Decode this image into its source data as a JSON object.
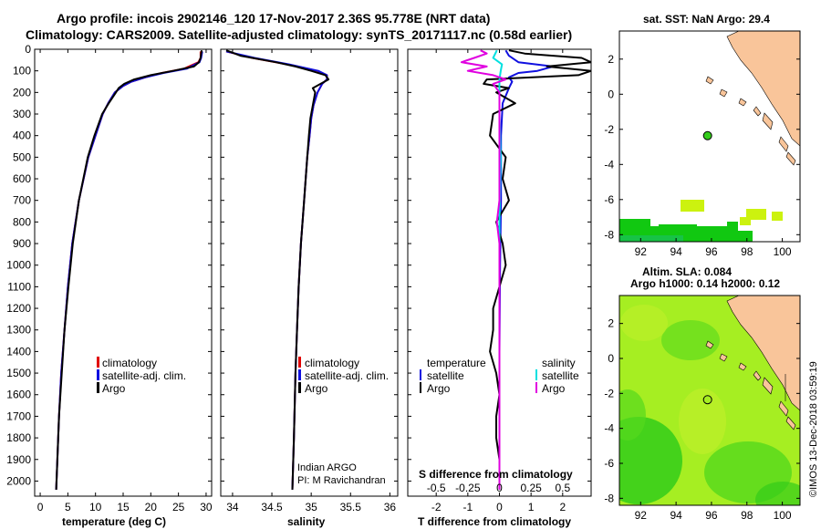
{
  "title_line1": "Argo profile: incois 2902146_120 17-Nov-2017 2.36S 95.778E (NRT data)",
  "title_line2": "Climatology: CARS2009. Satellite-adjusted climatology: synTS_20171117.nc (0.58d earlier)",
  "colors": {
    "clim": "#e00000",
    "sat": "#1010e0",
    "argo": "#000000",
    "sal_sat": "#00e0e0",
    "sal_argo": "#e000e0",
    "land": "#f9c59a",
    "sst_green": "#11c811",
    "sst_yellow": "#ccf20f",
    "sla_bg": "#a6ee22",
    "sla_dark": "#33cc1a"
  },
  "depth_axis": {
    "ticks": [
      "0",
      "100",
      "200",
      "300",
      "400",
      "500",
      "600",
      "700",
      "800",
      "900",
      "1000",
      "1100",
      "1200",
      "1300",
      "1400",
      "1500",
      "1600",
      "1700",
      "1800",
      "1900",
      "2000"
    ]
  },
  "chart_data": [
    {
      "id": "temperature",
      "type": "line",
      "xlabel": "temperature (deg C)",
      "xlim": [
        -1,
        31
      ],
      "ylim": [
        2070,
        0
      ],
      "xticks": [
        "0",
        "5",
        "10",
        "15",
        "20",
        "25",
        "30"
      ],
      "legend": [
        "climatology",
        "satellite-adj. clim.",
        "Argo"
      ],
      "series": [
        {
          "name": "climatology",
          "depth": [
            10,
            40,
            60,
            90,
            110,
            130,
            150,
            170,
            200,
            250,
            300,
            400,
            500,
            700,
            900,
            1100,
            1300,
            1500,
            1700,
            2040
          ],
          "values": [
            29,
            29,
            28.6,
            26,
            22,
            19,
            16.5,
            15,
            13.5,
            12.3,
            11.3,
            10,
            8.7,
            7,
            5.8,
            5,
            4.4,
            3.8,
            3.4,
            2.9
          ]
        },
        {
          "name": "satellite-adj. clim.",
          "depth": [
            10,
            40,
            60,
            90,
            110,
            130,
            150,
            170,
            200,
            250,
            300,
            400,
            500,
            700,
            900,
            1100,
            1300,
            1500,
            1700,
            2040
          ],
          "values": [
            29.3,
            29.1,
            28.8,
            26.5,
            22.3,
            19,
            16.5,
            15,
            13.5,
            12.3,
            11.3,
            10,
            8.7,
            7,
            5.8,
            5,
            4.4,
            3.8,
            3.4,
            2.9
          ]
        },
        {
          "name": "Argo",
          "depth": [
            5,
            20,
            40,
            60,
            80,
            100,
            120,
            140,
            160,
            180,
            200,
            250,
            300,
            400,
            500,
            700,
            900,
            1100,
            1300,
            1500,
            1700,
            1900,
            2040
          ],
          "values": [
            29.2,
            29.1,
            29,
            28.7,
            27.8,
            24,
            20,
            17,
            15.2,
            14.2,
            13.7,
            12.4,
            11.2,
            9.8,
            8.6,
            7,
            5.9,
            5.1,
            4.4,
            3.9,
            3.4,
            3.1,
            2.9
          ]
        }
      ]
    },
    {
      "id": "salinity",
      "type": "line",
      "xlabel": "salinity",
      "xlim": [
        33.85,
        36.1
      ],
      "ylim": [
        2070,
        0
      ],
      "xticks": [
        "34",
        "34.5",
        "35",
        "35.5",
        "36"
      ],
      "legend": [
        "climatology",
        "satellite-adj. clim.",
        "Argo"
      ],
      "annotation": [
        "Indian ARGO",
        "PI: M Ravichandran"
      ],
      "series": [
        {
          "name": "climatology",
          "depth": [
            10,
            40,
            70,
            100,
            120,
            140,
            160,
            200,
            260,
            320,
            400,
            500,
            700,
            900,
            1100,
            1300,
            1500,
            1800,
            2040
          ],
          "values": [
            33.92,
            34.25,
            34.7,
            35.08,
            35.2,
            35.2,
            35.14,
            35.08,
            35.03,
            35.0,
            34.98,
            34.95,
            34.91,
            34.87,
            34.84,
            34.82,
            34.8,
            34.78,
            34.76
          ]
        },
        {
          "name": "satellite-adj. clim.",
          "depth": [
            10,
            40,
            70,
            100,
            120,
            140,
            160,
            200,
            260,
            320,
            400,
            500,
            700,
            900,
            1100,
            1300,
            1500,
            1800,
            2040
          ],
          "values": [
            33.92,
            34.28,
            34.72,
            35.09,
            35.2,
            35.2,
            35.14,
            35.08,
            35.03,
            35.0,
            34.98,
            34.95,
            34.91,
            34.87,
            34.84,
            34.82,
            34.8,
            34.78,
            34.76
          ]
        },
        {
          "name": "Argo",
          "depth": [
            5,
            30,
            60,
            80,
            100,
            120,
            140,
            160,
            180,
            200,
            260,
            320,
            400,
            500,
            700,
            900,
            1100,
            1300,
            1500,
            1800,
            2040
          ],
          "values": [
            33.92,
            34.1,
            34.55,
            34.8,
            35.0,
            35.18,
            35.22,
            35.12,
            35.02,
            35.05,
            35.02,
            34.99,
            34.97,
            34.95,
            34.91,
            34.87,
            34.84,
            34.82,
            34.8,
            34.78,
            34.76
          ]
        }
      ]
    },
    {
      "id": "difference",
      "type": "line",
      "xlabel": "T difference from climatology",
      "xlabel_top": "S difference from climatology",
      "xlim": [
        -2.9,
        2.9
      ],
      "ylim": [
        2070,
        0
      ],
      "xticks": [
        "-2",
        "-1",
        "0",
        "1",
        "2"
      ],
      "xticks_top": [
        "-0.5",
        "-0.25",
        "0",
        "0.25",
        "0.5"
      ],
      "legend_left_title": "temperature",
      "legend_right_title": "salinity",
      "legend_left": [
        "satellite",
        "Argo"
      ],
      "legend_right": [
        "satellite",
        "Argo"
      ],
      "series": [
        {
          "name": "T satellite",
          "depth": [
            5,
            30,
            60,
            80,
            100,
            110,
            130,
            150,
            180,
            250,
            400,
            700,
            1000,
            1400,
            2040
          ],
          "values": [
            0.2,
            0.3,
            0.6,
            1.7,
            1.2,
            0.6,
            0.3,
            0.4,
            0.3,
            0.1,
            0.05,
            0.05,
            0.02,
            0.0,
            0.0
          ]
        },
        {
          "name": "T Argo",
          "depth": [
            5,
            20,
            40,
            60,
            80,
            100,
            120,
            140,
            160,
            180,
            200,
            250,
            300,
            400,
            500,
            600,
            700,
            800,
            900,
            1000,
            1100,
            1200,
            1300,
            1400,
            1500,
            1600,
            1700,
            1800,
            1900,
            2000,
            2040
          ],
          "values": [
            0.3,
            0.8,
            2.6,
            2.9,
            1.5,
            2.9,
            2.5,
            -0.4,
            -0.5,
            0.3,
            -0.1,
            0.5,
            -0.2,
            -0.3,
            0.2,
            0.1,
            0.3,
            -0.1,
            0.1,
            0.2,
            0.0,
            -0.2,
            -0.2,
            -0.3,
            -0.1,
            0.0,
            -0.1,
            -0.1,
            0.0,
            0.0,
            0.0
          ]
        },
        {
          "name": "S satellite",
          "depth": [
            5,
            40,
            70,
            100,
            140,
            200,
            300,
            500,
            800,
            1200,
            1600,
            2040
          ],
          "values": [
            -0.02,
            -0.05,
            0.02,
            0.01,
            0.0,
            0.0,
            0.0,
            0.01,
            0.0,
            0.0,
            0.0,
            0.0
          ]
        },
        {
          "name": "S Argo",
          "depth": [
            5,
            20,
            40,
            60,
            80,
            100,
            120,
            140,
            160,
            200,
            260,
            320,
            400,
            500,
            600,
            700,
            800,
            900,
            1000,
            1200,
            1500,
            1800,
            2040
          ],
          "values": [
            -0.15,
            -0.1,
            -0.2,
            -0.3,
            -0.1,
            -0.25,
            -0.05,
            0.05,
            -0.05,
            0.0,
            0.0,
            0.0,
            0.0,
            0.0,
            0.0,
            0.0,
            -0.02,
            0.0,
            0.0,
            0.0,
            0.0,
            0.0,
            0.0
          ]
        }
      ]
    },
    {
      "id": "sst_map",
      "type": "heatmap",
      "title": "sat. SST: NaN Argo: 29.4",
      "xlim": [
        90.8,
        101
      ],
      "ylim": [
        -8.4,
        3.6
      ],
      "xticks": [
        "92",
        "94",
        "96",
        "98",
        "100"
      ],
      "yticks": [
        "2",
        "0",
        "-2",
        "-4",
        "-6",
        "-8"
      ],
      "argo_position": {
        "lon": 95.78,
        "lat": -2.36
      }
    },
    {
      "id": "sla_map",
      "type": "heatmap",
      "title": "Altim. SLA: 0.084",
      "subtitle": "Argo h1000: 0.14 h2000: 0.12",
      "xlim": [
        90.8,
        101
      ],
      "ylim": [
        -8.4,
        3.6
      ],
      "xticks": [
        "92",
        "94",
        "96",
        "98",
        "100"
      ],
      "yticks": [
        "2",
        "0",
        "-2",
        "-4",
        "-6",
        "-8"
      ],
      "argo_position": {
        "lon": 95.78,
        "lat": -2.36
      }
    }
  ],
  "footer": "©IMOS 13-Dec-2018 03:59:19"
}
